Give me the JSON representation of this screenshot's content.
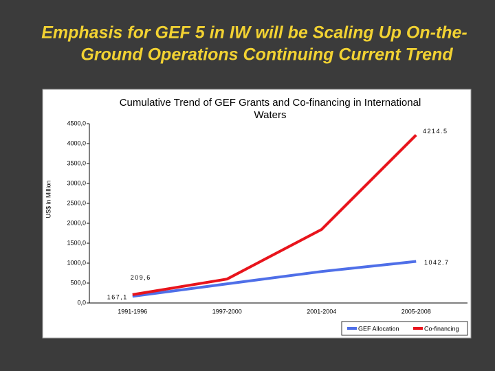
{
  "slide": {
    "title": [
      "Emphasis for GEF 5 in IW will be Scaling Up On-the-",
      "Ground Operations Continuing Current Trend"
    ]
  },
  "chart_data": {
    "type": "line",
    "title": [
      "Cumulative Trend of GEF Grants and Co-financing in International",
      "Waters"
    ],
    "y_label": "US$ in Million",
    "categories": [
      "1991-1996",
      "1997-2000",
      "2001-2004",
      "2005-2008"
    ],
    "series": [
      {
        "name": "GEF Allocation",
        "color": "#4f6fe8",
        "values": [
          167.1,
          480,
          790,
          1042.7
        ],
        "value_labels": [
          "167,1",
          null,
          null,
          "1042.7"
        ]
      },
      {
        "name": "Co-financing",
        "color": "#e8141c",
        "values": [
          209.6,
          600,
          1845,
          4214.5
        ],
        "value_labels": [
          "209,6",
          null,
          null,
          "4214.5"
        ]
      }
    ],
    "ylim": [
      0,
      4500
    ],
    "yticks": [
      {
        "value": 0,
        "label": "0,0"
      },
      {
        "value": 500,
        "label": "500,0"
      },
      {
        "value": 1000,
        "label": "1000,0"
      },
      {
        "value": 1500,
        "label": "1500,0"
      },
      {
        "value": 2000,
        "label": "2000,0"
      },
      {
        "value": 2500,
        "label": "2500,0"
      },
      {
        "value": 3000,
        "label": "3000,0"
      },
      {
        "value": 3500,
        "label": "3500,0"
      },
      {
        "value": 4000,
        "label": "4000,0"
      },
      {
        "value": 4500,
        "label": "4500,0"
      }
    ],
    "legend": "bottom-right"
  }
}
